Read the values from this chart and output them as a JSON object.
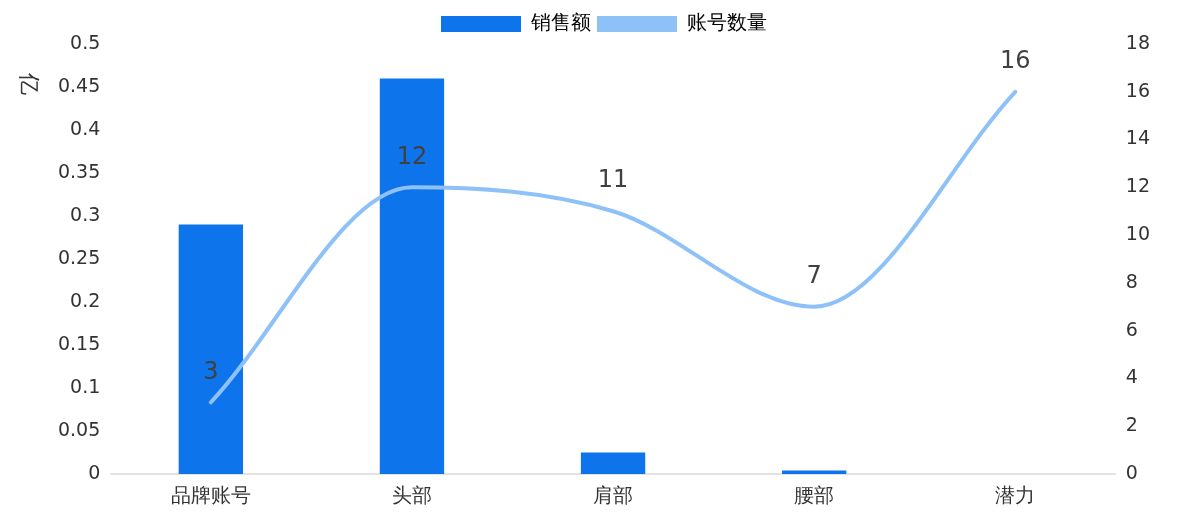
{
  "chart_data": {
    "type": "bar",
    "ylabel": "亿",
    "categories": [
      "品牌账号",
      "头部",
      "肩部",
      "腰部",
      "潜力"
    ],
    "series": [
      {
        "name": "销售额",
        "color": "#0e74ec",
        "values": [
          0.29,
          0.46,
          0.025,
          0.004,
          0
        ]
      },
      {
        "name": "账号数量",
        "type": "line",
        "axis": "y2",
        "color": "#8ec1f7",
        "values": [
          3,
          12,
          11,
          7,
          16
        ],
        "value_labels": [
          "3",
          "12",
          "11",
          "7",
          "16"
        ],
        "marker": "none"
      }
    ],
    "ylim": [
      0,
      0.5
    ],
    "yticks": [
      0,
      0.05,
      0.1,
      0.15,
      0.2,
      0.25,
      0.3,
      0.35,
      0.4,
      0.45,
      0.5
    ],
    "y2lim": [
      0,
      18
    ],
    "y2ticks": [
      0,
      2,
      4,
      6,
      8,
      10,
      12,
      14,
      16,
      18
    ],
    "grid": false,
    "legend": "top"
  }
}
